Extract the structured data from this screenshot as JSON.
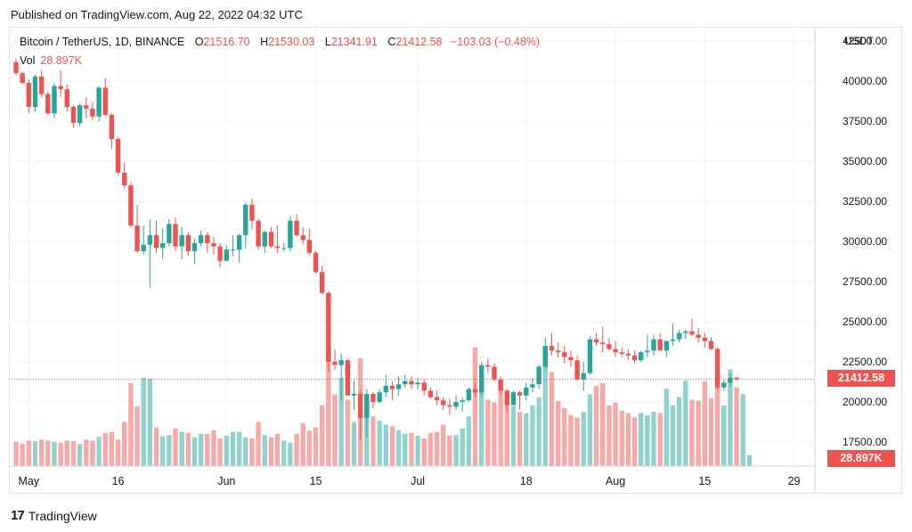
{
  "header": {
    "published": "Published on TradingView.com, Aug 22, 2022 04:32 UTC"
  },
  "legend": {
    "symbol": "Bitcoin / TetherUS, 1D, BINANCE",
    "o_label": "O",
    "o_value": "21516.70",
    "h_label": "H",
    "h_value": "21530.03",
    "l_label": "L",
    "l_value": "21341.91",
    "c_label": "C",
    "c_value": "21412.58",
    "change": "−103.03 (−0.48%)",
    "vol_label": "Vol",
    "vol_value": "28.897K"
  },
  "footer": {
    "brand": "TradingView",
    "logo_glyph": "17"
  },
  "colors": {
    "up": "#26a69a",
    "down": "#ef5350",
    "up_vol": "#92d2cc",
    "down_vol": "#f7a9a7",
    "grid": "#f0f3fa",
    "axis_text": "#131722"
  },
  "chart_data": {
    "type": "candlestick",
    "currency_label": "USDT",
    "ylim": [
      16000,
      43400
    ],
    "y_ticks": [
      "42500.00",
      "40000.00",
      "37500.00",
      "35000.00",
      "32500.00",
      "30000.00",
      "27500.00",
      "25000.00",
      "22500.00",
      "20000.00",
      "17500.00"
    ],
    "x_ticks": [
      {
        "label": "May",
        "day": 2
      },
      {
        "label": "16",
        "day": 16
      },
      {
        "label": "Jun",
        "day": 33
      },
      {
        "label": "15",
        "day": 47
      },
      {
        "label": "Jul",
        "day": 63
      },
      {
        "label": "18",
        "day": 80
      },
      {
        "label": "Aug",
        "day": 94
      },
      {
        "label": "15",
        "day": 108
      },
      {
        "label": "29",
        "day": 122
      }
    ],
    "start_date": "2022-04-30",
    "last_price": "21412.58",
    "last_volume": "28.897K",
    "candles": [
      [
        41200,
        41400,
        40400,
        40500
      ],
      [
        40500,
        40600,
        39800,
        39900
      ],
      [
        39900,
        40100,
        38000,
        38400
      ],
      [
        38400,
        40400,
        38100,
        40300
      ],
      [
        40300,
        40700,
        39000,
        39200
      ],
      [
        39200,
        39400,
        37900,
        38000
      ],
      [
        38000,
        39900,
        37700,
        39700
      ],
      [
        39700,
        40700,
        39000,
        39500
      ],
      [
        39500,
        39800,
        38100,
        38400
      ],
      [
        38400,
        38500,
        37100,
        37400
      ],
      [
        37400,
        38600,
        37200,
        38500
      ],
      [
        38500,
        39000,
        37700,
        38300
      ],
      [
        38300,
        38700,
        37600,
        37800
      ],
      [
        37800,
        39700,
        37500,
        39600
      ],
      [
        39600,
        40200,
        37800,
        37900
      ],
      [
        37900,
        38000,
        35800,
        36400
      ],
      [
        36400,
        36500,
        34200,
        34300
      ],
      [
        34300,
        34900,
        33300,
        33500
      ],
      [
        33500,
        33700,
        30900,
        31000
      ],
      [
        31000,
        32300,
        29300,
        29400
      ],
      [
        29400,
        31000,
        29200,
        29800
      ],
      [
        29800,
        31400,
        27100,
        30400
      ],
      [
        30400,
        31300,
        29300,
        29600
      ],
      [
        29600,
        30800,
        28900,
        29900
      ],
      [
        29900,
        31400,
        29700,
        31100
      ],
      [
        31100,
        31500,
        29400,
        29700
      ],
      [
        29700,
        30900,
        28900,
        30400
      ],
      [
        30400,
        30600,
        29100,
        29400
      ],
      [
        29400,
        30200,
        28600,
        29900
      ],
      [
        29900,
        30700,
        29700,
        30400
      ],
      [
        30400,
        30600,
        29300,
        29900
      ],
      [
        29900,
        30300,
        29200,
        29700
      ],
      [
        29700,
        29900,
        28400,
        28800
      ],
      [
        28800,
        29800,
        28800,
        29500
      ],
      [
        29500,
        30400,
        29100,
        29500
      ],
      [
        29500,
        30500,
        28700,
        30400
      ],
      [
        30400,
        32400,
        29600,
        32300
      ],
      [
        32300,
        32700,
        30800,
        31300
      ],
      [
        31300,
        31400,
        29500,
        29700
      ],
      [
        29700,
        30700,
        29300,
        30600
      ],
      [
        30600,
        30900,
        29600,
        29700
      ],
      [
        29700,
        31000,
        29300,
        29600
      ],
      [
        29600,
        29900,
        29400,
        29600
      ],
      [
        29600,
        31600,
        29400,
        31300
      ],
      [
        31300,
        31700,
        30300,
        30400
      ],
      [
        30400,
        30900,
        29800,
        30100
      ],
      [
        30100,
        30800,
        29200,
        29300
      ],
      [
        29300,
        29400,
        28000,
        28100
      ],
      [
        28100,
        28500,
        26700,
        26800
      ],
      [
        26800,
        26900,
        21900,
        22500
      ],
      [
        22500,
        23300,
        22000,
        22300
      ],
      [
        22300,
        23000,
        20100,
        22600
      ],
      [
        22600,
        22700,
        20400,
        20400
      ],
      [
        20400,
        21300,
        19500,
        20500
      ],
      [
        20500,
        20700,
        17600,
        19000
      ],
      [
        19000,
        20800,
        17800,
        20500
      ],
      [
        20500,
        20600,
        19600,
        20000
      ],
      [
        20000,
        20800,
        19900,
        20600
      ],
      [
        20600,
        21700,
        20300,
        21000
      ],
      [
        21000,
        21300,
        20100,
        20800
      ],
      [
        20800,
        21600,
        20400,
        21100
      ],
      [
        21100,
        21700,
        20900,
        21300
      ],
      [
        21300,
        21600,
        20800,
        21100
      ],
      [
        21100,
        21500,
        20800,
        21200
      ],
      [
        21200,
        21400,
        20400,
        20700
      ],
      [
        20700,
        20900,
        20200,
        20300
      ],
      [
        20300,
        20700,
        19800,
        20100
      ],
      [
        20100,
        20300,
        19500,
        19800
      ],
      [
        19800,
        20200,
        19200,
        19700
      ],
      [
        19700,
        20400,
        19500,
        20000
      ],
      [
        20000,
        20300,
        19400,
        20100
      ],
      [
        20100,
        20900,
        20000,
        20800
      ],
      [
        20800,
        21200,
        20300,
        20600
      ],
      [
        20600,
        22500,
        20400,
        22300
      ],
      [
        22300,
        22700,
        21800,
        22200
      ],
      [
        22200,
        22400,
        21300,
        21400
      ],
      [
        21400,
        21600,
        20500,
        20700
      ],
      [
        20700,
        20800,
        19400,
        19800
      ],
      [
        19800,
        20700,
        19800,
        20600
      ],
      [
        20600,
        20700,
        19500,
        20400
      ],
      [
        20400,
        21200,
        20100,
        20900
      ],
      [
        20900,
        21500,
        20600,
        21100
      ],
      [
        21100,
        22300,
        20800,
        22200
      ],
      [
        22200,
        24000,
        22100,
        23500
      ],
      [
        23500,
        24300,
        22900,
        23200
      ],
      [
        23200,
        23700,
        22800,
        23100
      ],
      [
        23100,
        23500,
        22400,
        22800
      ],
      [
        22800,
        23200,
        22200,
        22600
      ],
      [
        22600,
        22900,
        21300,
        21400
      ],
      [
        21400,
        22500,
        20700,
        21800
      ],
      [
        21800,
        24100,
        21700,
        23900
      ],
      [
        23900,
        24300,
        23500,
        23700
      ],
      [
        23700,
        24700,
        23100,
        23600
      ],
      [
        23600,
        24000,
        23200,
        23300
      ],
      [
        23300,
        23800,
        22800,
        23100
      ],
      [
        23100,
        23400,
        22800,
        23000
      ],
      [
        23000,
        23300,
        22600,
        22900
      ],
      [
        22900,
        23200,
        22400,
        22600
      ],
      [
        22600,
        23200,
        22500,
        23100
      ],
      [
        23100,
        24200,
        22800,
        23200
      ],
      [
        23200,
        24200,
        22900,
        23900
      ],
      [
        23900,
        24300,
        23300,
        23200
      ],
      [
        23200,
        23700,
        22800,
        23800
      ],
      [
        23800,
        24900,
        23500,
        23900
      ],
      [
        23900,
        24500,
        23700,
        24300
      ],
      [
        24300,
        24500,
        23900,
        24400
      ],
      [
        24400,
        25200,
        24100,
        24200
      ],
      [
        24200,
        24600,
        23700,
        24000
      ],
      [
        24000,
        24300,
        23400,
        23800
      ],
      [
        23800,
        24000,
        23200,
        23300
      ],
      [
        23300,
        23400,
        20800,
        20900
      ],
      [
        20900,
        21400,
        20700,
        21200
      ],
      [
        21200,
        21800,
        21000,
        21500
      ],
      [
        21516.7,
        21530.03,
        21341.91,
        21412.58
      ]
    ],
    "volumes": [
      44,
      40,
      46,
      45,
      48,
      46,
      44,
      42,
      46,
      45,
      40,
      48,
      46,
      53,
      60,
      62,
      48,
      80,
      150,
      108,
      160,
      158,
      70,
      54,
      56,
      68,
      62,
      60,
      52,
      58,
      58,
      65,
      50,
      55,
      62,
      62,
      52,
      50,
      80,
      56,
      52,
      58,
      46,
      42,
      58,
      78,
      64,
      70,
      110,
      200,
      130,
      160,
      120,
      80,
      195,
      100,
      90,
      82,
      75,
      72,
      65,
      58,
      60,
      55,
      50,
      60,
      62,
      75,
      55,
      56,
      68,
      90,
      215,
      150,
      120,
      115,
      148,
      125,
      108,
      98,
      95,
      110,
      124,
      210,
      170,
      118,
      105,
      92,
      88,
      98,
      130,
      145,
      150,
      110,
      115,
      100,
      96,
      88,
      96,
      92,
      98,
      96,
      140,
      110,
      125,
      155,
      120,
      118,
      153,
      123,
      160,
      110,
      175,
      142,
      130,
      20
    ]
  }
}
